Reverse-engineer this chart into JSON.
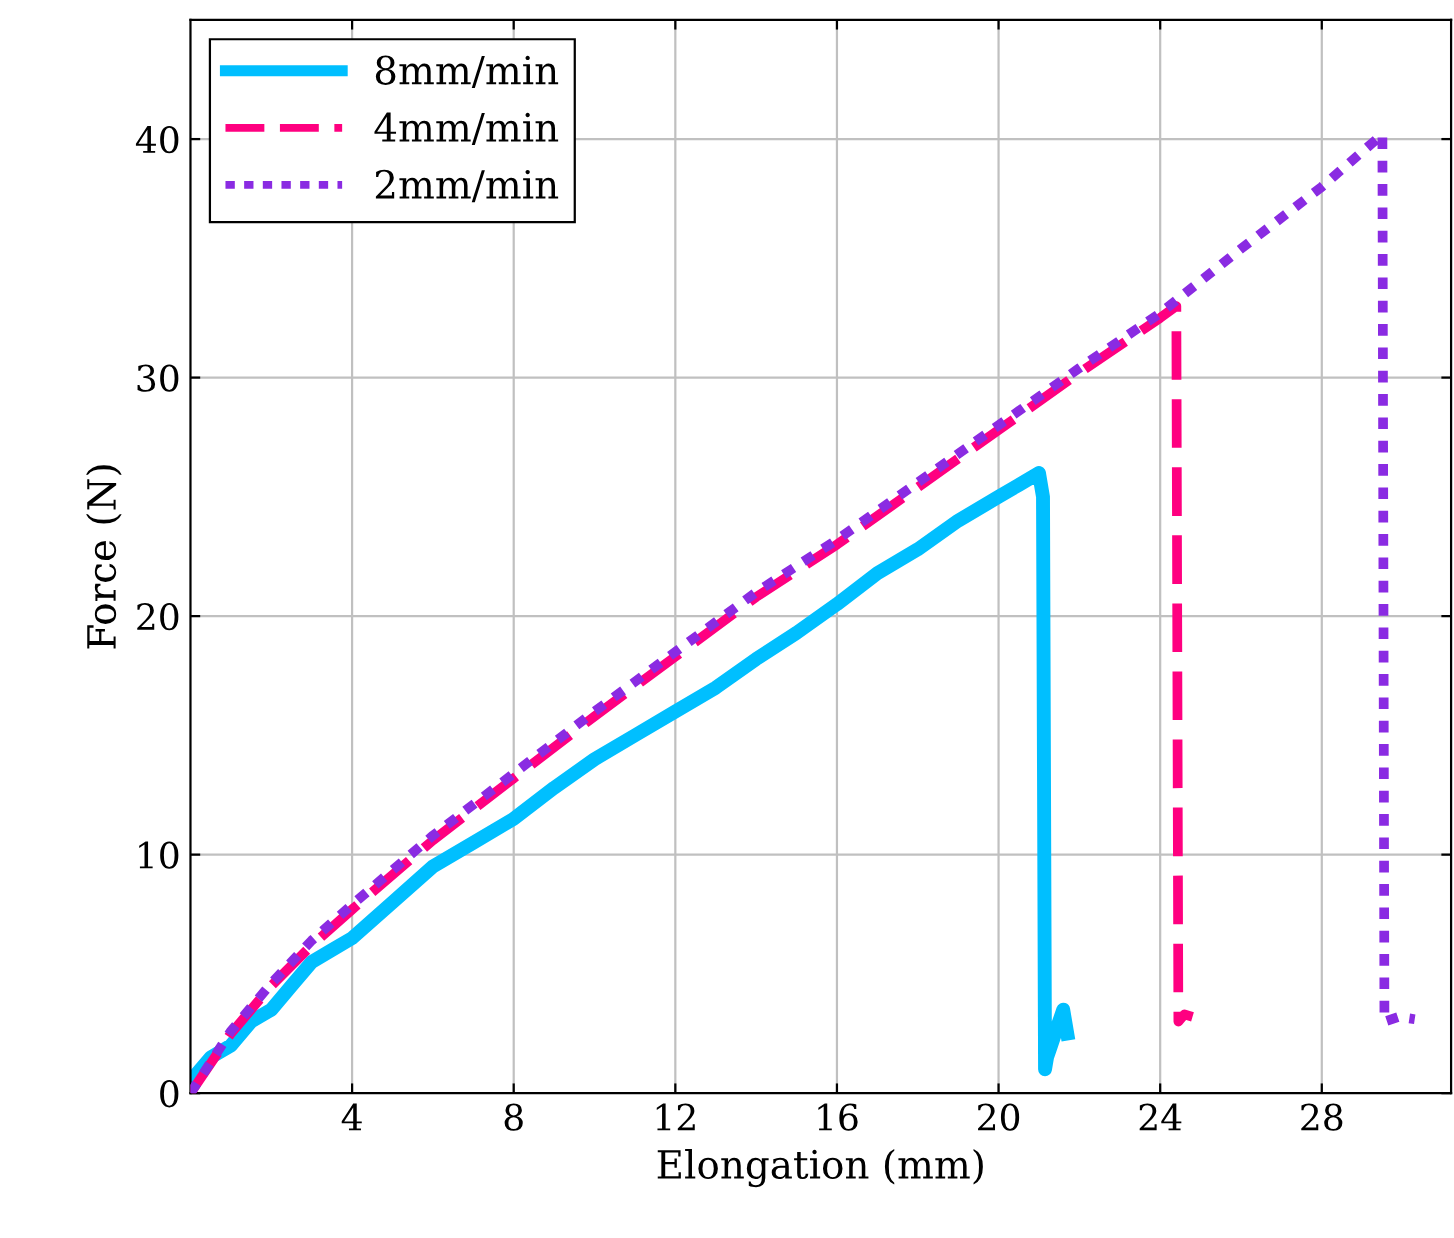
{
  "chart_data": {
    "type": "line",
    "xlabel": "Elongation (mm)",
    "ylabel": "Force (N)",
    "xlim": [
      0,
      31.2
    ],
    "ylim": [
      0,
      45
    ],
    "xticks": [
      4,
      8,
      12,
      16,
      20,
      24,
      28
    ],
    "yticks": [
      0,
      10,
      20,
      30,
      40
    ],
    "grid": true,
    "legend": "top left",
    "series": [
      {
        "name": "8mm/min",
        "color": "#00bfff",
        "line_style": "solid",
        "x": [
          0,
          0.5,
          1,
          1.5,
          2,
          2.5,
          3,
          3.5,
          4,
          5,
          6,
          7,
          8,
          9,
          10,
          11,
          12,
          13,
          14,
          15,
          16,
          17,
          18,
          19,
          20,
          20.5,
          21,
          21.1,
          21.15,
          21.2,
          21.3,
          21.5,
          21.6,
          21.7
        ],
        "values": [
          0.5,
          1.5,
          2,
          3,
          3.5,
          4.5,
          5.5,
          6,
          6.5,
          8,
          9.5,
          10.5,
          11.5,
          12.8,
          14,
          15,
          16,
          17,
          18.2,
          19.3,
          20.5,
          21.8,
          22.8,
          24,
          25,
          25.5,
          26,
          25,
          1,
          1.5,
          2,
          3,
          3.5,
          2.5
        ]
      },
      {
        "name": "4mm/min",
        "color": "#ff0080",
        "line_style": "dashed",
        "x": [
          0,
          1,
          2,
          3,
          4,
          6,
          8,
          10,
          12,
          14,
          16,
          18,
          20,
          22,
          24,
          24.4,
          24.45,
          24.6,
          24.8
        ],
        "values": [
          0,
          2.5,
          4.5,
          6.2,
          7.7,
          10.6,
          13.2,
          15.8,
          18.3,
          20.8,
          23,
          25.4,
          27.8,
          30.2,
          32.5,
          33,
          3,
          3.3,
          3.2
        ]
      },
      {
        "name": "2mm/min",
        "color": "#8a2be2",
        "line_style": "dotted",
        "x": [
          0,
          1,
          2,
          3,
          4,
          6,
          8,
          10,
          12,
          14,
          16,
          18,
          20,
          22,
          24,
          26,
          28,
          29.5,
          29.55,
          29.9,
          30.3
        ],
        "values": [
          0,
          2.6,
          4.6,
          6.4,
          7.9,
          10.8,
          13.4,
          16,
          18.5,
          21,
          23.2,
          25.6,
          28,
          30.4,
          32.7,
          35.4,
          38,
          40.2,
          3,
          3.2,
          3.1
        ]
      }
    ]
  }
}
